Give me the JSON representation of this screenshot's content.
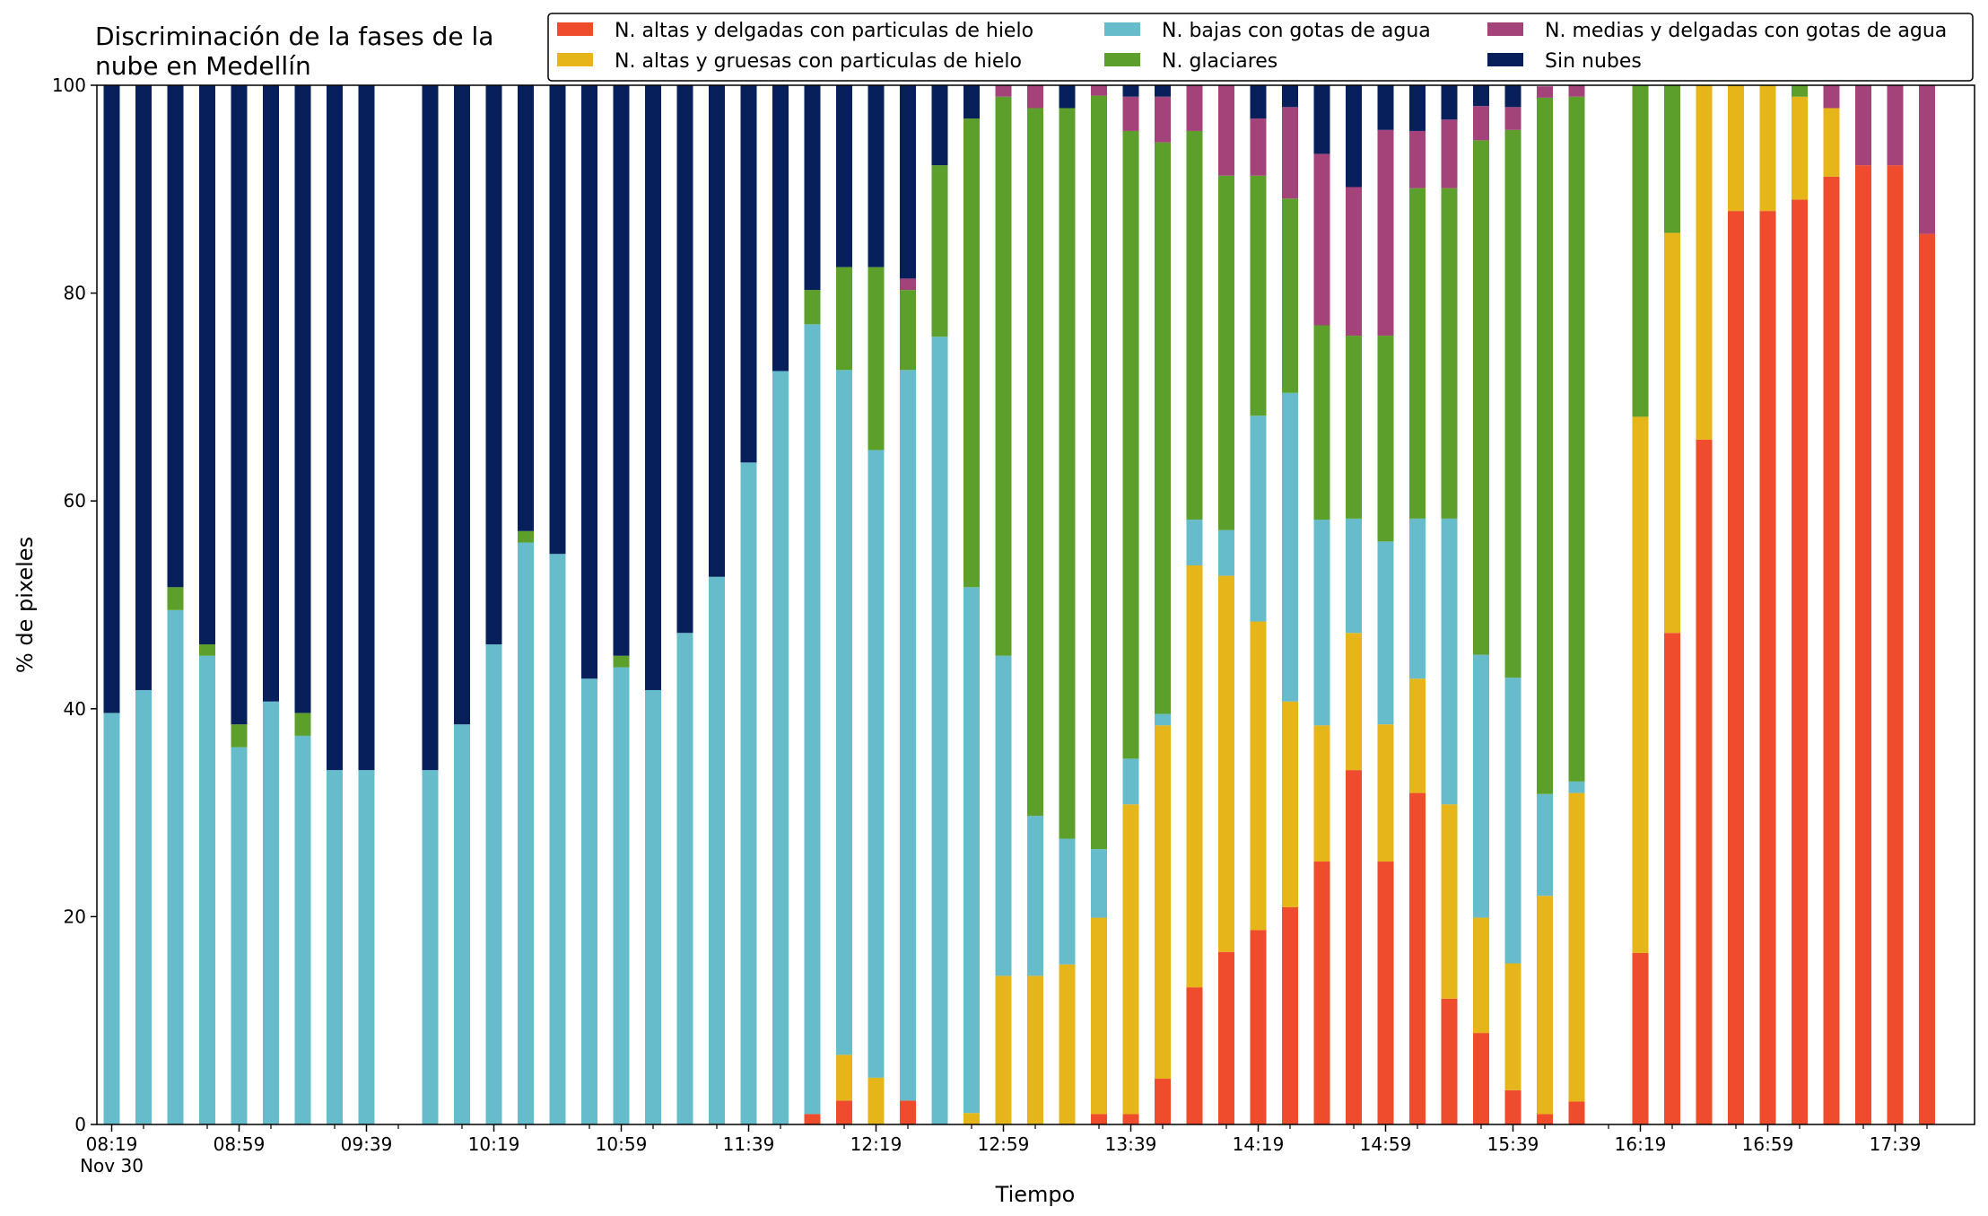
{
  "chart_data": {
    "type": "bar",
    "stacked": true,
    "title": [
      "Discriminación de la fases de la",
      "nube en Medellín"
    ],
    "xlabel": "Tiempo",
    "ylabel": "% de pixeles",
    "ylim": [
      0,
      100
    ],
    "yticks": [
      0,
      20,
      40,
      60,
      80,
      100
    ],
    "xticks": [
      {
        "slot": 0,
        "label": "08:19",
        "sublabel": "Nov 30"
      },
      {
        "slot": 4,
        "label": "08:59"
      },
      {
        "slot": 8,
        "label": "09:39"
      },
      {
        "slot": 12,
        "label": "10:19"
      },
      {
        "slot": 16,
        "label": "10:59"
      },
      {
        "slot": 20,
        "label": "11:39"
      },
      {
        "slot": 24,
        "label": "12:19"
      },
      {
        "slot": 28,
        "label": "12:59"
      },
      {
        "slot": 32,
        "label": "13:39"
      },
      {
        "slot": 36,
        "label": "14:19"
      },
      {
        "slot": 40,
        "label": "14:59"
      },
      {
        "slot": 44,
        "label": "15:39"
      },
      {
        "slot": 48,
        "label": "16:19"
      },
      {
        "slot": 52,
        "label": "16:59"
      },
      {
        "slot": 56,
        "label": "17:39"
      }
    ],
    "minor_ticks_between": 1,
    "grid": false,
    "legend_position": "top-right",
    "legend_columns": 3,
    "slots": [
      "08:19",
      "08:29",
      "08:39",
      "08:49",
      "08:59",
      "09:09",
      "09:19",
      "09:29",
      "09:39",
      "09:49",
      "09:59",
      "10:09",
      "10:19",
      "10:29",
      "10:39",
      "10:49",
      "10:59",
      "11:09",
      "11:19",
      "11:29",
      "11:39",
      "11:49",
      "11:59",
      "12:09",
      "12:19",
      "12:29",
      "12:39",
      "12:49",
      "12:59",
      "13:09",
      "13:19",
      "13:29",
      "13:39",
      "13:49",
      "13:59",
      "14:09",
      "14:19",
      "14:29",
      "14:39",
      "14:49",
      "14:59",
      "15:09",
      "15:19",
      "15:29",
      "15:39",
      "15:49",
      "15:59",
      "16:09",
      "16:19",
      "16:29",
      "16:39",
      "16:49",
      "16:59",
      "17:09",
      "17:19",
      "17:29",
      "17:39",
      "17:49"
    ],
    "series": [
      {
        "name": "N. altas y delgadas con particulas de hielo",
        "color": "#ee4c2c",
        "values": [
          0,
          0,
          0,
          0,
          0,
          0,
          0,
          0,
          0,
          null,
          0,
          0,
          0,
          0,
          0,
          0,
          0,
          0,
          0,
          0,
          0,
          0,
          1,
          2.3,
          0,
          2.3,
          0,
          0,
          0,
          0,
          0,
          1,
          1,
          4.4,
          13.2,
          16.6,
          18.7,
          20.9,
          25.3,
          34.1,
          25.3,
          31.9,
          12.1,
          8.8,
          3.3,
          1,
          2.2,
          0,
          16.5,
          47.3,
          65.9,
          87.9,
          87.9,
          89,
          91.2,
          92.3,
          92.3,
          85.7
        ]
      },
      {
        "name": "N. altas y gruesas con particulas de hielo",
        "color": "#e5b51a",
        "values": [
          0,
          0,
          0,
          0,
          0,
          0,
          0,
          0,
          0,
          null,
          0,
          0,
          0,
          0,
          0,
          0,
          0,
          0,
          0,
          0,
          0,
          0,
          0,
          4.4,
          4.5,
          0,
          0,
          1.1,
          14.3,
          14.3,
          15.4,
          18.9,
          29.8,
          34,
          40.6,
          36.2,
          29.7,
          19.8,
          13.1,
          13.2,
          13.2,
          11.0,
          18.7,
          11.1,
          12.2,
          21.0,
          29.7,
          0,
          51.6,
          38.5,
          34.1,
          12.1,
          12.1,
          9.9,
          6.6,
          0,
          0,
          0
        ]
      },
      {
        "name": "N. bajas con gotas de agua",
        "color": "#66bccb",
        "values": [
          39.6,
          41.8,
          49.5,
          45.1,
          36.3,
          40.7,
          37.4,
          34.1,
          34.1,
          null,
          34.1,
          38.5,
          46.2,
          56,
          54.9,
          42.9,
          44,
          41.8,
          47.3,
          52.7,
          63.7,
          72.5,
          76,
          65.9,
          60.4,
          70.3,
          75.8,
          50.6,
          30.8,
          15.4,
          12.1,
          6.6,
          4.4,
          1.1,
          4.4,
          4.4,
          19.8,
          29.7,
          19.8,
          11.0,
          17.6,
          15.4,
          27.5,
          25.3,
          27.5,
          9.8,
          1.1,
          0,
          0,
          0,
          0,
          0,
          0,
          0,
          0,
          0,
          0,
          0
        ]
      },
      {
        "name": "N. glaciares",
        "color": "#5c9f2b",
        "values": [
          0,
          0,
          2.2,
          1.1,
          2.2,
          0,
          2.2,
          0,
          0,
          null,
          0,
          0,
          0,
          1.1,
          0,
          0,
          1.1,
          0,
          0,
          0,
          0,
          0,
          3.3,
          9.9,
          17.6,
          7.7,
          16.5,
          45.1,
          53.8,
          68.1,
          70.3,
          72.5,
          60.4,
          55.0,
          37.4,
          34.1,
          23.1,
          18.7,
          18.7,
          17.6,
          19.8,
          31.8,
          31.8,
          49.5,
          52.7,
          67.0,
          65.9,
          0,
          31.9,
          14.3,
          0,
          0,
          0,
          1.1,
          0,
          0,
          0,
          0
        ]
      },
      {
        "name": "N. medias y delgadas con gotas de agua",
        "color": "#a4437a",
        "values": [
          0,
          0,
          0,
          0,
          0,
          0,
          0,
          0,
          0,
          null,
          0,
          0,
          0,
          0,
          0,
          0,
          0,
          0,
          0,
          0,
          0,
          0,
          0,
          0,
          0,
          1.1,
          0,
          0,
          1.1,
          2.2,
          0,
          1.1,
          3.3,
          4.4,
          4.4,
          8.8,
          5.5,
          8.8,
          16.5,
          14.3,
          19.8,
          5.5,
          6.6,
          3.3,
          2.2,
          1.1,
          1.1,
          0,
          0,
          0,
          0,
          0,
          0,
          0,
          2.2,
          7.7,
          7.7,
          14.3
        ]
      },
      {
        "name": "Sin nubes",
        "color": "#07205c",
        "values": [
          60.4,
          58.2,
          48.3,
          53.8,
          61.5,
          59.3,
          60.4,
          65.9,
          65.9,
          null,
          65.9,
          61.5,
          53.8,
          42.9,
          45.1,
          57.1,
          54.9,
          58.2,
          52.7,
          47.3,
          36.3,
          27.5,
          19.7,
          17.5,
          17.5,
          18.6,
          7.7,
          3.2,
          0,
          0,
          2.2,
          0,
          1.1,
          1.1,
          0,
          0,
          3.3,
          2.2,
          6.6,
          9.8,
          4.3,
          4.4,
          3.3,
          2.2,
          2.2,
          0,
          0,
          0,
          0,
          0,
          0,
          0,
          0,
          0,
          0,
          0,
          0,
          0
        ]
      }
    ]
  }
}
